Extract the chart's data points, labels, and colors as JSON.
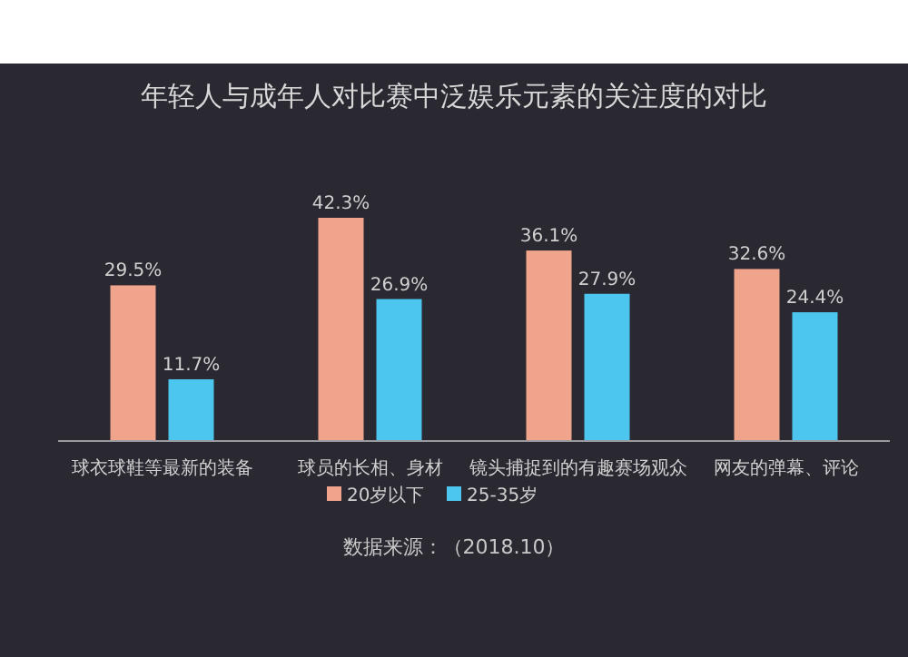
{
  "chart_data": {
    "type": "bar",
    "title": "年轻人与成年人对比赛中泛娱乐元素的关注度的对比",
    "categories": [
      "球衣球鞋等最新的装备",
      "球员的长相、身材",
      "镜头捕捉到的有趣赛场观众",
      "网友的弹幕、评论"
    ],
    "series": [
      {
        "name": "20岁以下",
        "color": "#f0a48c",
        "values": [
          29.5,
          42.3,
          36.1,
          32.6
        ],
        "value_labels": [
          "29.5%",
          "42.3%",
          "36.1%",
          "32.6%"
        ]
      },
      {
        "name": "25-35岁",
        "color": "#4cc6ee",
        "values": [
          11.7,
          26.9,
          27.9,
          24.4
        ],
        "value_labels": [
          "11.7%",
          "26.9%",
          "27.9%",
          "24.4%"
        ]
      }
    ],
    "legend": "bottom",
    "grid": false,
    "annotations": [
      "数据来源：（2018.10）"
    ]
  }
}
